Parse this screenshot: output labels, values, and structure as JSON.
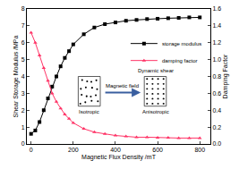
{
  "chart_data": {
    "type": "line",
    "x_label": "Magnetic Flux Density /mT",
    "y_label": "Shear Storage Modulus /MPa",
    "y2_label": "Damping Factor",
    "xlim": [
      -20,
      850
    ],
    "xticks": [
      0,
      200,
      400,
      600,
      800
    ],
    "ylim": [
      0,
      8
    ],
    "yticks": [
      0,
      1,
      2,
      3,
      4,
      5,
      6,
      7,
      8
    ],
    "y2lim": [
      0,
      1.6
    ],
    "y2ticks": [
      {
        "value": 0,
        "label": "0.0"
      },
      0.2,
      0.4,
      0.6,
      0.8,
      {
        "value": 1,
        "label": "1.0"
      },
      1.2,
      1.4,
      1.6
    ],
    "x": [
      0,
      20,
      40,
      60,
      80,
      100,
      120,
      140,
      160,
      180,
      200,
      250,
      300,
      350,
      400,
      450,
      500,
      550,
      600,
      650,
      700,
      750,
      800
    ],
    "series": [
      {
        "name": "storage modulus",
        "color": "#000000",
        "marker": "square",
        "line_style": "solid",
        "values": [
          0.6,
          0.8,
          1.3,
          2.0,
          2.7,
          3.4,
          4.0,
          4.6,
          5.1,
          5.5,
          5.9,
          6.5,
          6.9,
          7.1,
          7.2,
          7.3,
          7.35,
          7.4,
          7.42,
          7.45,
          7.47,
          7.5,
          7.5
        ]
      },
      {
        "name": "damping factor",
        "color": "#ff3366",
        "marker": "triangle-up",
        "line_style": "solid",
        "axis": "y2",
        "values": [
          1.32,
          1.2,
          1.05,
          0.9,
          0.75,
          0.6,
          0.5,
          0.42,
          0.35,
          0.3,
          0.25,
          0.18,
          0.14,
          0.12,
          0.1,
          0.09,
          0.08,
          0.08,
          0.075,
          0.075,
          0.07,
          0.07,
          0.07
        ]
      }
    ],
    "annotations": [
      "Isotropic",
      "Anisotropic",
      "Magnetic field",
      "Dynamic shear"
    ],
    "legend": "right",
    "grid": false
  }
}
